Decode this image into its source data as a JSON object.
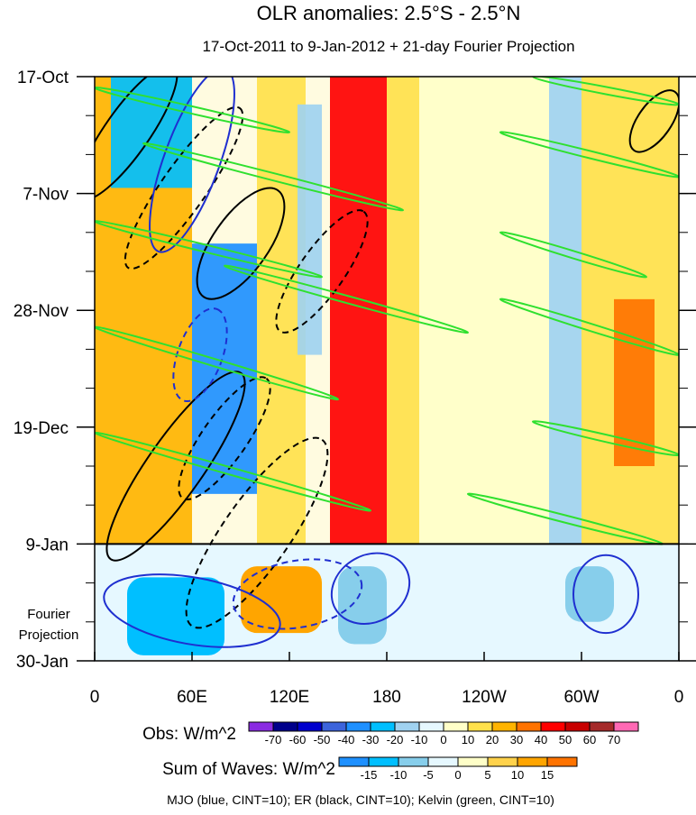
{
  "chart_data": {
    "type": "heatmap",
    "title": "OLR anomalies: 2.5°S - 2.5°N",
    "subtitle": "17-Oct-2011 to 9-Jan-2012 + 21-day Fourier Projection",
    "x_axis": {
      "label": "",
      "range_deg_east": [
        0,
        360
      ],
      "ticks": [
        {
          "label": "0",
          "lon": 0
        },
        {
          "label": "60E",
          "lon": 60
        },
        {
          "label": "120E",
          "lon": 120
        },
        {
          "label": "180",
          "lon": 180
        },
        {
          "label": "120W",
          "lon": 240
        },
        {
          "label": "60W",
          "lon": 300
        },
        {
          "label": "0",
          "lon": 360
        }
      ]
    },
    "y_axis": {
      "label": "",
      "range_days_from_start": [
        0,
        105
      ],
      "ticks": [
        {
          "label": "17-Oct",
          "day": 0
        },
        {
          "label": "7-Nov",
          "day": 21
        },
        {
          "label": "28-Nov",
          "day": 42
        },
        {
          "label": "19-Dec",
          "day": 63
        },
        {
          "label": "9-Jan",
          "day": 84
        },
        {
          "label": "30-Jan",
          "day": 105
        }
      ],
      "projection_label_line1": "Fourier",
      "projection_label_line2": "Projection"
    },
    "projection_start_day": 84,
    "obs_colorbar": {
      "label": "Obs: W/m^2",
      "levels": [
        -70,
        -60,
        -50,
        -40,
        -30,
        -20,
        -10,
        0,
        10,
        20,
        30,
        40,
        50,
        60,
        70
      ],
      "colors": [
        "#8a2be2",
        "#00008b",
        "#0000cd",
        "#3c64dc",
        "#1e90ff",
        "#00bfff",
        "#a0d2f0",
        "#e6f8ff",
        "#ffffc8",
        "#ffe14b",
        "#ffb400",
        "#ff7300",
        "#ff0000",
        "#c80000",
        "#a52a2a",
        "#ff69b4"
      ]
    },
    "waves_colorbar": {
      "label": "Sum of Waves: W/m^2",
      "levels": [
        -15,
        -10,
        -5,
        0,
        5,
        10,
        15
      ],
      "colors": [
        "#1e90ff",
        "#00bfff",
        "#87ceeb",
        "#e6f8ff",
        "#ffffc8",
        "#ffd24b",
        "#ffa500",
        "#ff7300"
      ]
    },
    "contour_legend": "MJO (blue, CINT=10); ER (black, CINT=10); Kelvin (green, CINT=10)",
    "bands": [
      {
        "lon_from": 0,
        "lon_to": 60,
        "day_from": 0,
        "day_to": 84,
        "value": 20
      },
      {
        "lon_from": 60,
        "lon_to": 100,
        "day_from": 30,
        "day_to": 75,
        "value": -40
      },
      {
        "lon_from": 10,
        "lon_to": 60,
        "day_from": 0,
        "day_to": 20,
        "value": -30
      },
      {
        "lon_from": 100,
        "lon_to": 130,
        "day_from": 0,
        "day_to": 84,
        "value": 10
      },
      {
        "lon_from": 125,
        "lon_to": 140,
        "day_from": 5,
        "day_to": 50,
        "value": -20
      },
      {
        "lon_from": 145,
        "lon_to": 180,
        "day_from": 0,
        "day_to": 84,
        "value": 40
      },
      {
        "lon_from": 180,
        "lon_to": 200,
        "day_from": 0,
        "day_to": 84,
        "value": 10
      },
      {
        "lon_from": 200,
        "lon_to": 280,
        "day_from": 0,
        "day_to": 84,
        "value": 0
      },
      {
        "lon_from": 280,
        "lon_to": 300,
        "day_from": 0,
        "day_to": 84,
        "value": -20
      },
      {
        "lon_from": 300,
        "lon_to": 360,
        "day_from": 0,
        "day_to": 84,
        "value": 15
      },
      {
        "lon_from": 320,
        "lon_to": 345,
        "day_from": 40,
        "day_to": 70,
        "value": 30
      }
    ],
    "projection_bands": [
      {
        "lon_from": 0,
        "lon_to": 360,
        "day_from": 84,
        "day_to": 105,
        "value": -3
      },
      {
        "lon_from": 20,
        "lon_to": 80,
        "day_from": 90,
        "day_to": 104,
        "value": -12
      },
      {
        "lon_from": 90,
        "lon_to": 140,
        "day_from": 88,
        "day_to": 100,
        "value": 10
      },
      {
        "lon_from": 150,
        "lon_to": 180,
        "day_from": 88,
        "day_to": 102,
        "value": -10
      },
      {
        "lon_from": 290,
        "lon_to": 320,
        "day_from": 88,
        "day_to": 98,
        "value": -10
      }
    ],
    "kelvin_contours": [
      {
        "lon0": 0,
        "day0": 2,
        "lon1": 120,
        "day1": 10
      },
      {
        "lon0": 30,
        "day0": 12,
        "lon1": 190,
        "day1": 24
      },
      {
        "lon0": 0,
        "day0": 26,
        "lon1": 140,
        "day1": 36
      },
      {
        "lon0": 80,
        "day0": 34,
        "lon1": 230,
        "day1": 46
      },
      {
        "lon0": 0,
        "day0": 45,
        "lon1": 150,
        "day1": 58
      },
      {
        "lon0": 0,
        "day0": 64,
        "lon1": 170,
        "day1": 78
      },
      {
        "lon0": 270,
        "day0": 0,
        "lon1": 360,
        "day1": 5
      },
      {
        "lon0": 250,
        "day0": 10,
        "lon1": 360,
        "day1": 18
      },
      {
        "lon0": 250,
        "day0": 28,
        "lon1": 340,
        "day1": 36
      },
      {
        "lon0": 250,
        "day0": 40,
        "lon1": 360,
        "day1": 50
      },
      {
        "lon0": 270,
        "day0": 62,
        "lon1": 360,
        "day1": 68
      },
      {
        "lon0": 230,
        "day0": 75,
        "lon1": 350,
        "day1": 84
      }
    ],
    "er_contours": [
      {
        "lon": 20,
        "day": 10,
        "rx": 50,
        "ry": 4,
        "rot": -55,
        "dash": false
      },
      {
        "lon": 55,
        "day": 20,
        "rx": 60,
        "ry": 4,
        "rot": -55,
        "dash": true
      },
      {
        "lon": 90,
        "day": 30,
        "rx": 40,
        "ry": 5,
        "rot": -55,
        "dash": false
      },
      {
        "lon": 140,
        "day": 35,
        "rx": 45,
        "ry": 4,
        "rot": -55,
        "dash": true
      },
      {
        "lon": 50,
        "day": 70,
        "rx": 70,
        "ry": 5,
        "rot": -55,
        "dash": false
      },
      {
        "lon": 80,
        "day": 65,
        "rx": 45,
        "ry": 4,
        "rot": -55,
        "dash": true
      },
      {
        "lon": 100,
        "day": 82,
        "rx": 70,
        "ry": 6,
        "rot": -55,
        "dash": true
      },
      {
        "lon": 345,
        "day": 8,
        "rx": 22,
        "ry": 3,
        "rot": -55,
        "dash": false
      }
    ],
    "mjo_contours": [
      {
        "lon": 60,
        "day": 15,
        "rx": 60,
        "ry": 5,
        "rot": -70,
        "dash": false
      },
      {
        "lon": 65,
        "day": 50,
        "rx": 30,
        "ry": 4,
        "rot": -70,
        "dash": true
      },
      {
        "lon": 60,
        "day": 96,
        "rx": 55,
        "ry": 6,
        "rot": 10,
        "dash": false
      },
      {
        "lon": 125,
        "day": 93,
        "rx": 40,
        "ry": 6,
        "rot": -10,
        "dash": true
      },
      {
        "lon": 170,
        "day": 92,
        "rx": 25,
        "ry": 6,
        "rot": -30,
        "dash": false
      },
      {
        "lon": 315,
        "day": 93,
        "rx": 20,
        "ry": 7,
        "rot": 0,
        "dash": false
      }
    ]
  }
}
